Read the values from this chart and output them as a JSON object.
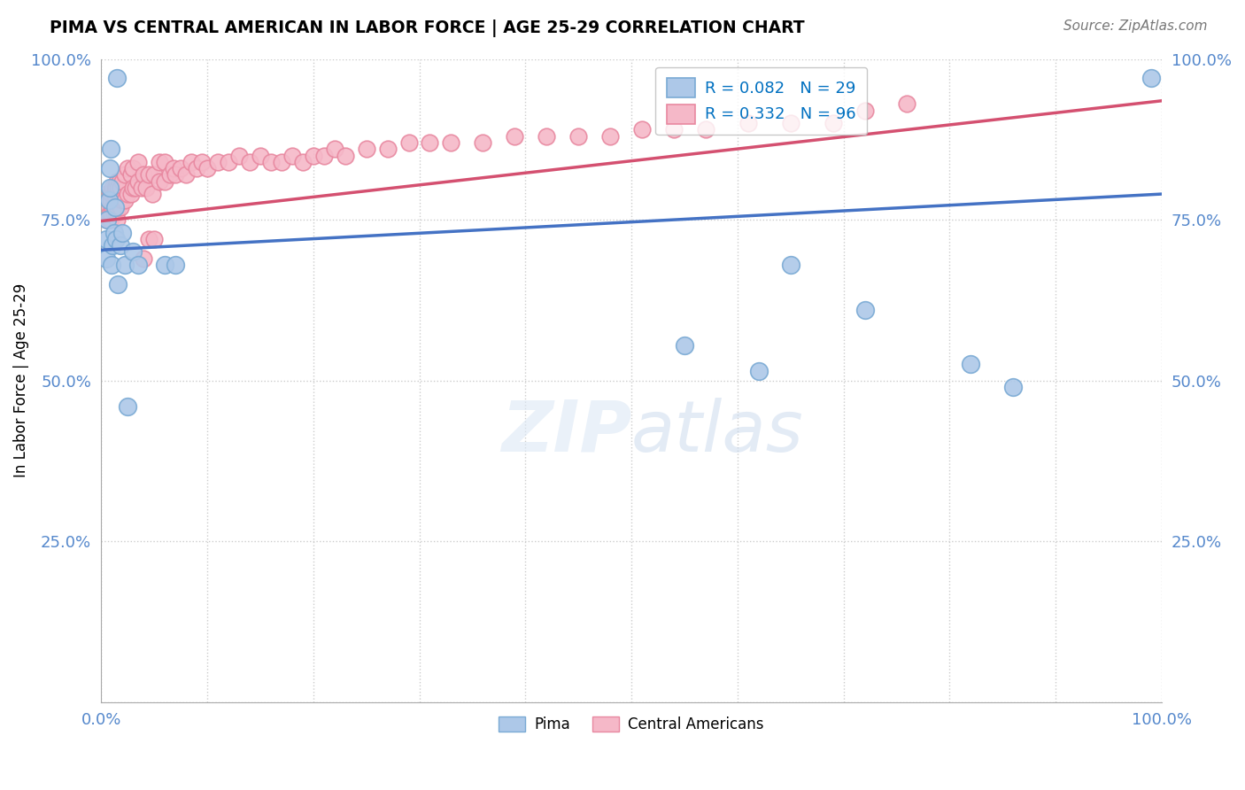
{
  "title": "PIMA VS CENTRAL AMERICAN IN LABOR FORCE | AGE 25-29 CORRELATION CHART",
  "source": "Source: ZipAtlas.com",
  "ylabel": "In Labor Force | Age 25-29",
  "pima_R": 0.082,
  "pima_N": 29,
  "central_R": 0.332,
  "central_N": 96,
  "pima_color": "#adc8e8",
  "pima_edge_color": "#7aaad4",
  "central_color": "#f5b8c8",
  "central_edge_color": "#e888a0",
  "pima_line_color": "#4472c4",
  "central_line_color": "#d45070",
  "legend_R_color": "#0070c0",
  "background_color": "#ffffff",
  "grid_color": "#cccccc",
  "tick_label_color": "#5588cc",
  "pima_x": [
    0.005,
    0.005,
    0.006,
    0.007,
    0.008,
    0.008,
    0.009,
    0.01,
    0.011,
    0.012,
    0.013,
    0.014,
    0.015,
    0.016,
    0.018,
    0.02,
    0.022,
    0.025,
    0.03,
    0.035,
    0.06,
    0.07,
    0.55,
    0.62,
    0.65,
    0.72,
    0.82,
    0.86,
    0.99
  ],
  "pima_y": [
    0.69,
    0.72,
    0.75,
    0.78,
    0.8,
    0.83,
    0.86,
    0.68,
    0.71,
    0.73,
    0.77,
    0.72,
    0.97,
    0.65,
    0.71,
    0.73,
    0.68,
    0.46,
    0.7,
    0.68,
    0.68,
    0.68,
    0.555,
    0.515,
    0.68,
    0.61,
    0.525,
    0.49,
    0.97
  ],
  "central_x": [
    0.005,
    0.005,
    0.005,
    0.005,
    0.006,
    0.006,
    0.007,
    0.007,
    0.008,
    0.008,
    0.009,
    0.009,
    0.01,
    0.01,
    0.011,
    0.011,
    0.012,
    0.012,
    0.013,
    0.013,
    0.014,
    0.014,
    0.015,
    0.015,
    0.016,
    0.016,
    0.017,
    0.017,
    0.018,
    0.018,
    0.02,
    0.02,
    0.022,
    0.022,
    0.025,
    0.025,
    0.028,
    0.028,
    0.03,
    0.03,
    0.032,
    0.035,
    0.035,
    0.038,
    0.04,
    0.04,
    0.042,
    0.045,
    0.045,
    0.048,
    0.05,
    0.05,
    0.055,
    0.055,
    0.06,
    0.06,
    0.065,
    0.068,
    0.07,
    0.075,
    0.08,
    0.085,
    0.09,
    0.095,
    0.1,
    0.11,
    0.12,
    0.13,
    0.14,
    0.15,
    0.16,
    0.17,
    0.18,
    0.19,
    0.2,
    0.21,
    0.22,
    0.23,
    0.25,
    0.27,
    0.29,
    0.31,
    0.33,
    0.36,
    0.39,
    0.42,
    0.45,
    0.48,
    0.51,
    0.54,
    0.57,
    0.61,
    0.65,
    0.69,
    0.72,
    0.76
  ],
  "central_y": [
    0.75,
    0.76,
    0.78,
    0.79,
    0.76,
    0.78,
    0.75,
    0.77,
    0.76,
    0.79,
    0.75,
    0.78,
    0.76,
    0.79,
    0.77,
    0.8,
    0.76,
    0.79,
    0.77,
    0.8,
    0.76,
    0.8,
    0.75,
    0.81,
    0.77,
    0.8,
    0.78,
    0.81,
    0.77,
    0.8,
    0.78,
    0.81,
    0.78,
    0.82,
    0.79,
    0.83,
    0.79,
    0.82,
    0.8,
    0.83,
    0.8,
    0.81,
    0.84,
    0.8,
    0.82,
    0.69,
    0.8,
    0.82,
    0.72,
    0.79,
    0.82,
    0.72,
    0.81,
    0.84,
    0.81,
    0.84,
    0.82,
    0.83,
    0.82,
    0.83,
    0.82,
    0.84,
    0.83,
    0.84,
    0.83,
    0.84,
    0.84,
    0.85,
    0.84,
    0.85,
    0.84,
    0.84,
    0.85,
    0.84,
    0.85,
    0.85,
    0.86,
    0.85,
    0.86,
    0.86,
    0.87,
    0.87,
    0.87,
    0.87,
    0.88,
    0.88,
    0.88,
    0.88,
    0.89,
    0.89,
    0.89,
    0.9,
    0.9,
    0.9,
    0.92,
    0.93
  ],
  "xlim": [
    0.0,
    1.0
  ],
  "ylim": [
    0.0,
    1.0
  ],
  "xticks": [
    0.0,
    0.1,
    0.2,
    0.3,
    0.4,
    0.5,
    0.6,
    0.7,
    0.8,
    0.9,
    1.0
  ],
  "yticks": [
    0.0,
    0.25,
    0.5,
    0.75,
    1.0
  ],
  "xtick_labels": [
    "0.0%",
    "",
    "",
    "",
    "",
    "",
    "",
    "",
    "",
    "",
    "100.0%"
  ],
  "ytick_labels_left": [
    "",
    "25.0%",
    "50.0%",
    "75.0%",
    "100.0%"
  ],
  "ytick_labels_right": [
    "",
    "25.0%",
    "50.0%",
    "75.0%",
    "100.0%"
  ]
}
